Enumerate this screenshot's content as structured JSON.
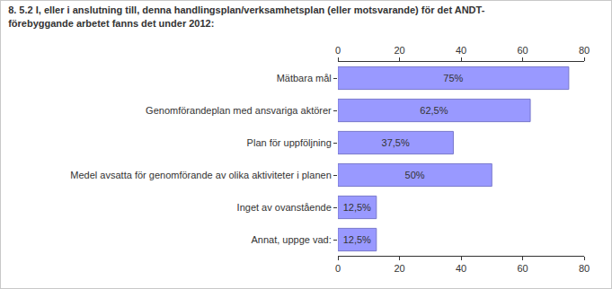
{
  "chart_data": {
    "type": "bar",
    "title": "8. 5.2 I, eller i anslutning till, denna handlingsplan/verksamhetsplan (eller motsvarande) för det ANDT-\nförebyggande arbetet fanns det under 2012:",
    "categories": [
      "Mätbara mål",
      "Genomförandeplan med ansvariga aktörer",
      "Plan för uppföljning",
      "Medel avsatta för genomförande av olika aktiviteter i planen",
      "Inget av ovanstående",
      "Annat, uppge vad:"
    ],
    "values": [
      75,
      62.5,
      37.5,
      50,
      12.5,
      12.5
    ],
    "value_labels": [
      "75%",
      "62,5%",
      "37,5%",
      "50%",
      "12,5%",
      "12,5%"
    ],
    "color": "#9999ff",
    "xlim": [
      0,
      80
    ],
    "xticks": [
      0,
      20,
      40,
      60,
      80
    ],
    "orientation": "horizontal",
    "data_labels": true,
    "grid": false
  }
}
